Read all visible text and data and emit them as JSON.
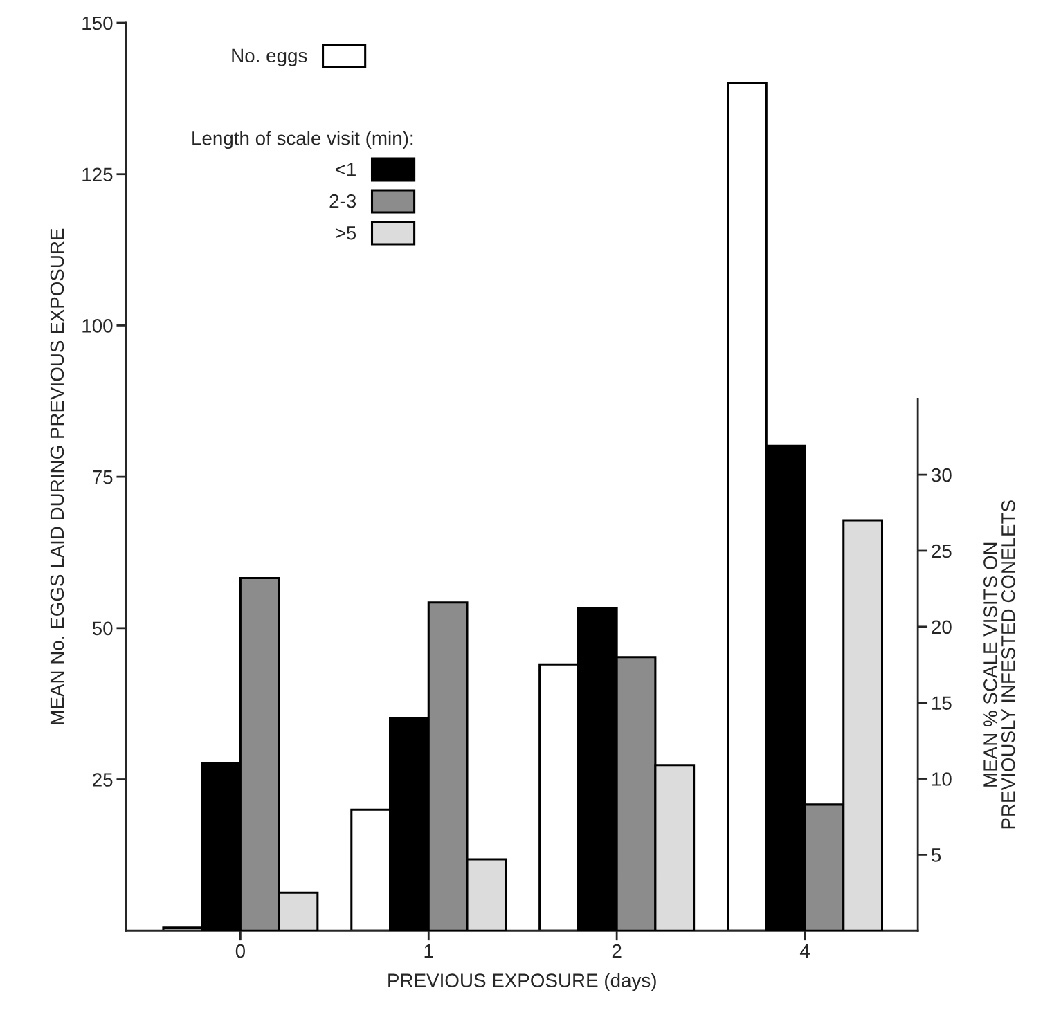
{
  "chart_data": {
    "type": "bar",
    "xlabel": "PREVIOUS EXPOSURE (days)",
    "ylabel": "MEAN No. EGGS LAID DURING PREVIOUS EXPOSURE",
    "y2label": "MEAN % SCALE VISITS ON\nPREVIOUSLY INFESTED CONELETS",
    "legend_title": "Length of scale visit (min):",
    "categories": [
      "0",
      "1",
      "2",
      "4"
    ],
    "series": [
      {
        "name": "No. eggs",
        "color": "#ffffff",
        "values": [
          0.5,
          20,
          44,
          140
        ]
      },
      {
        "name": "<1",
        "color": "#000000",
        "values": [
          11.0,
          14.0,
          21.2,
          31.9
        ],
        "axis": "y2"
      },
      {
        "name": "2-3",
        "color": "#8c8c8c",
        "values": [
          23.2,
          21.6,
          18.0,
          8.3
        ],
        "axis": "y2"
      },
      {
        "name": ">5",
        "color": "#dcdcdc",
        "values": [
          2.5,
          4.7,
          10.9,
          27.0
        ],
        "axis": "y2"
      }
    ],
    "ylim": [
      0,
      150
    ],
    "yticks": [
      25,
      50,
      75,
      100,
      125,
      150
    ],
    "y2lim": [
      0,
      35
    ],
    "y2ticks": [
      5,
      10,
      15,
      20,
      25,
      30
    ],
    "grid": false,
    "legend": "top left"
  }
}
